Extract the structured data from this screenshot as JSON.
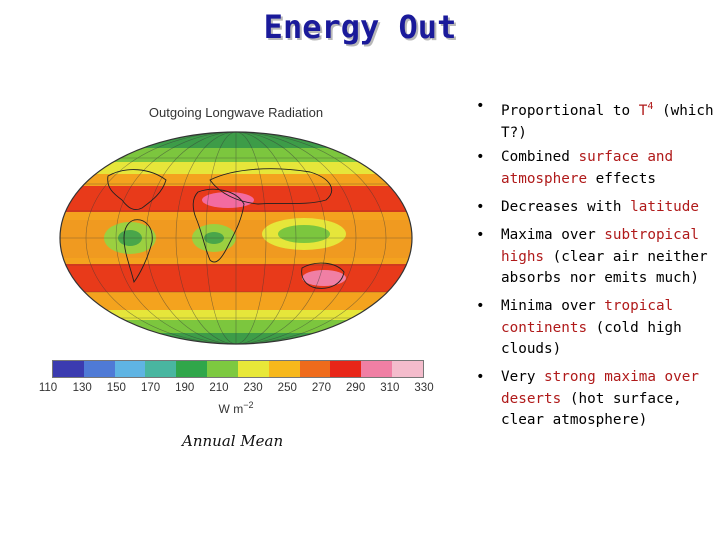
{
  "title": "Energy Out",
  "map": {
    "title": "Outgoing Longwave Radiation",
    "unit_label": "W m",
    "unit_exp": "−2",
    "caption": "Annual Mean",
    "colorbar_ticks": [
      "110",
      "130",
      "150",
      "170",
      "190",
      "210",
      "230",
      "250",
      "270",
      "290",
      "310",
      "330"
    ],
    "colorbar_colors": [
      "#3b3bb0",
      "#4f7ad6",
      "#5fb4e3",
      "#49b6a0",
      "#30a64a",
      "#7dc940",
      "#e8e838",
      "#f7b81c",
      "#ef6b1c",
      "#e82618",
      "#f07fa4",
      "#f4bccc"
    ]
  },
  "bullets": [
    {
      "pre": "Proportional to ",
      "hl": "T",
      "sup": "4",
      "post": " (which T?)"
    },
    {
      "pre": "Combined ",
      "hl": "surface and atmosphere",
      "post": " effects"
    },
    {
      "pre": "Decreases with ",
      "hl": "latitude",
      "post": ""
    },
    {
      "pre": "Maxima over ",
      "hl": "subtropical highs",
      "post": " (clear air neither absorbs nor emits much)"
    },
    {
      "pre": "Minima over ",
      "hl": "tropical continents",
      "post": " (cold high clouds)"
    },
    {
      "pre": "Very ",
      "hl": "strong maxima over deserts",
      "post": " (hot surface, clear atmosphere)"
    }
  ],
  "colors": {
    "title": "#1a1a9a",
    "highlight": "#b01a1a"
  }
}
